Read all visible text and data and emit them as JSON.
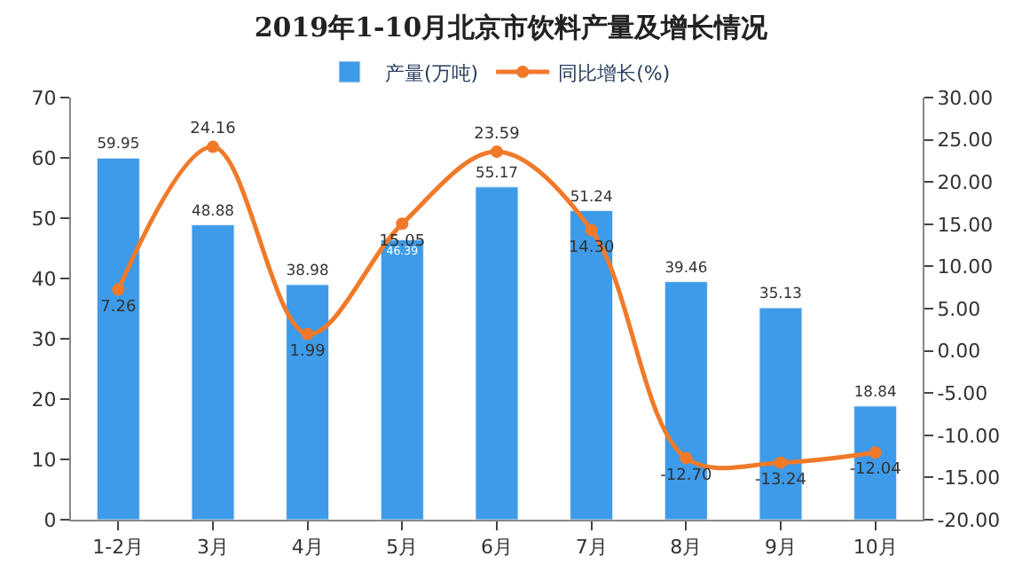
{
  "chart_data": {
    "type": "bar",
    "title": "2019年1-10月北京市饮料产量及增长情况",
    "categories": [
      "1-2月",
      "3月",
      "4月",
      "5月",
      "6月",
      "7月",
      "8月",
      "9月",
      "10月"
    ],
    "series": [
      {
        "name": "产量(万吨)",
        "color": "#3d9be9",
        "values": [
          59.95,
          48.88,
          38.98,
          46.39,
          55.17,
          51.24,
          39.46,
          35.13,
          18.84
        ],
        "value_labels": [
          "59.95",
          "48.88",
          "38.98",
          "46.39",
          "55.17",
          "51.24",
          "39.46",
          "35.13",
          "18.84"
        ]
      },
      {
        "name": "同比增长(%)",
        "type": "line",
        "axis": "y2",
        "color": "#f07a2a",
        "marker": "circle",
        "values": [
          7.26,
          24.16,
          1.99,
          15.05,
          23.59,
          14.3,
          -12.7,
          -13.24,
          -12.04
        ],
        "value_labels": [
          "7.26",
          "24.16",
          "1.99",
          "15.05",
          "23.59",
          "14.30",
          "-12.70",
          "-13.24",
          "-12.04"
        ]
      }
    ],
    "ylim": [
      0,
      70
    ],
    "yticks": [
      0,
      10,
      20,
      30,
      40,
      50,
      60,
      70
    ],
    "y2lim": [
      -20,
      30
    ],
    "y2ticks": [
      {
        "value": -20,
        "label": "-20.00"
      },
      {
        "value": -15,
        "label": "-15.00"
      },
      {
        "value": -10,
        "label": "-10.00"
      },
      {
        "value": -5,
        "label": "-5.00"
      },
      {
        "value": 0,
        "label": "0.00"
      },
      {
        "value": 5,
        "label": "5.00"
      },
      {
        "value": 10,
        "label": "10.00"
      },
      {
        "value": 15,
        "label": "15.00"
      },
      {
        "value": 20,
        "label": "20.00"
      },
      {
        "value": 25,
        "label": "25.00"
      },
      {
        "value": 30,
        "label": "30.00"
      }
    ],
    "legend": "top"
  }
}
